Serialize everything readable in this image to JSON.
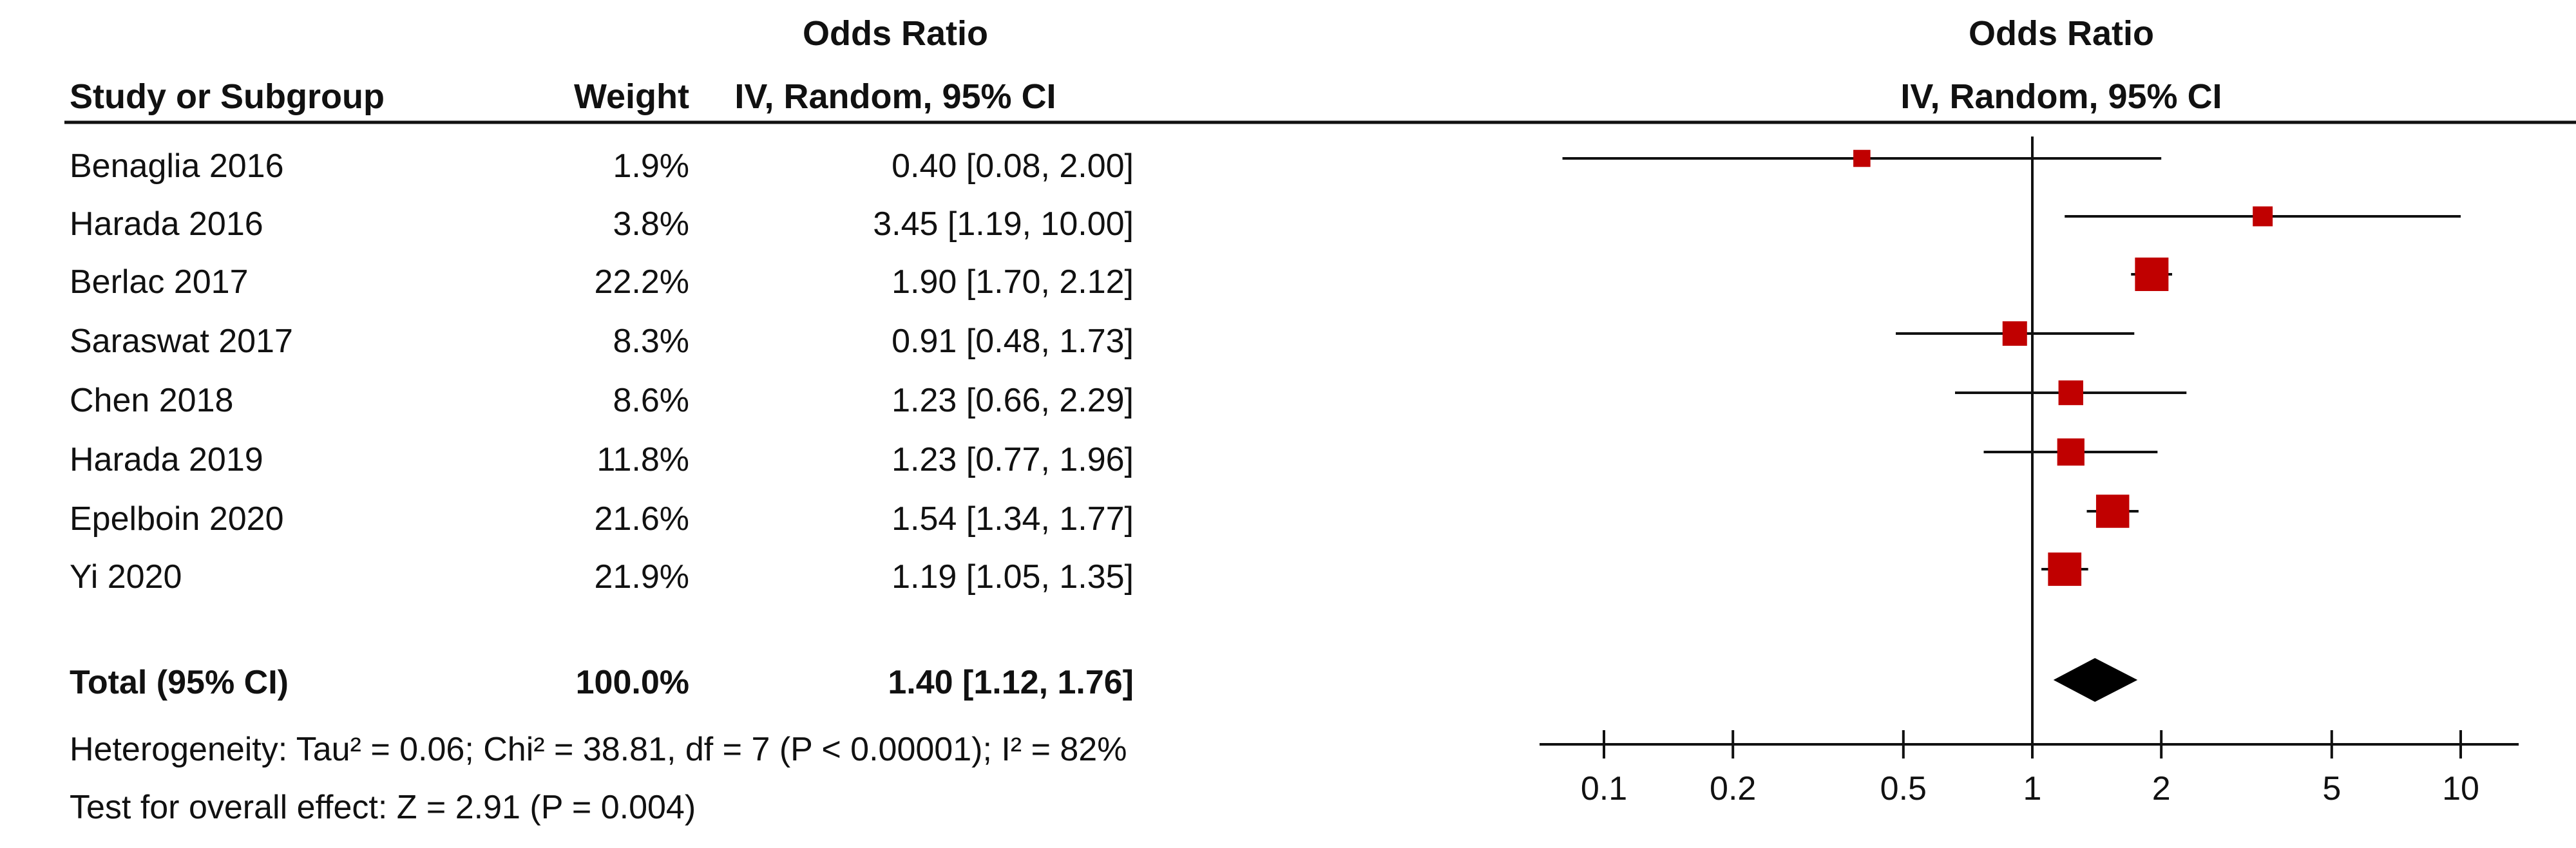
{
  "table": {
    "header_group": "Odds Ratio",
    "col_study": "Study or Subgroup",
    "col_weight": "Weight",
    "col_ci": "IV, Random, 95% CI",
    "rows": [
      {
        "study": "Benaglia 2016",
        "weight": "1.9%",
        "ci": "0.40 [0.08, 2.00]"
      },
      {
        "study": "Harada 2016",
        "weight": "3.8%",
        "ci": "3.45 [1.19, 10.00]"
      },
      {
        "study": "Berlac 2017",
        "weight": "22.2%",
        "ci": "1.90 [1.70, 2.12]"
      },
      {
        "study": "Saraswat 2017",
        "weight": "8.3%",
        "ci": "0.91 [0.48, 1.73]"
      },
      {
        "study": "Chen 2018",
        "weight": "8.6%",
        "ci": "1.23 [0.66, 2.29]"
      },
      {
        "study": "Harada 2019",
        "weight": "11.8%",
        "ci": "1.23 [0.77, 1.96]"
      },
      {
        "study": "Epelboin 2020",
        "weight": "21.6%",
        "ci": "1.54 [1.34, 1.77]"
      },
      {
        "study": "Yi 2020",
        "weight": "21.9%",
        "ci": "1.19 [1.05, 1.35]"
      }
    ],
    "total": {
      "label": "Total (95% CI)",
      "weight": "100.0%",
      "ci": "1.40 [1.12, 1.76]"
    },
    "heterogeneity": "Heterogeneity: Tau² = 0.06; Chi² = 38.81, df = 7 (P < 0.00001); I² = 82%",
    "overall_effect": "Test for overall effect: Z = 2.91 (P = 0.004)"
  },
  "plot": {
    "title": "Odds Ratio",
    "subtitle": "IV, Random, 95% CI"
  },
  "colors": {
    "marker": "#c00000",
    "line": "#111111",
    "diamond": "#000000"
  },
  "chart_data": {
    "type": "forest",
    "scale": "log",
    "xlim": [
      0.08,
      14
    ],
    "ticks": [
      0.1,
      0.2,
      0.5,
      1,
      2,
      5,
      10
    ],
    "tick_labels": [
      "0.1",
      "0.2",
      "0.5",
      "1",
      "2",
      "5",
      "10"
    ],
    "reference_line": 1,
    "studies": [
      {
        "name": "Benaglia 2016",
        "or": 0.4,
        "lo": 0.08,
        "hi": 2.0,
        "weight": 1.9
      },
      {
        "name": "Harada 2016",
        "or": 3.45,
        "lo": 1.19,
        "hi": 10.0,
        "weight": 3.8
      },
      {
        "name": "Berlac 2017",
        "or": 1.9,
        "lo": 1.7,
        "hi": 2.12,
        "weight": 22.2
      },
      {
        "name": "Saraswat 2017",
        "or": 0.91,
        "lo": 0.48,
        "hi": 1.73,
        "weight": 8.3
      },
      {
        "name": "Chen 2018",
        "or": 1.23,
        "lo": 0.66,
        "hi": 2.29,
        "weight": 8.6
      },
      {
        "name": "Harada 2019",
        "or": 1.23,
        "lo": 0.77,
        "hi": 1.96,
        "weight": 11.8
      },
      {
        "name": "Epelboin 2020",
        "or": 1.54,
        "lo": 1.34,
        "hi": 1.77,
        "weight": 21.6
      },
      {
        "name": "Yi 2020",
        "or": 1.19,
        "lo": 1.05,
        "hi": 1.35,
        "weight": 21.9
      }
    ],
    "total": {
      "name": "Total (95% CI)",
      "or": 1.4,
      "lo": 1.12,
      "hi": 1.76
    }
  }
}
